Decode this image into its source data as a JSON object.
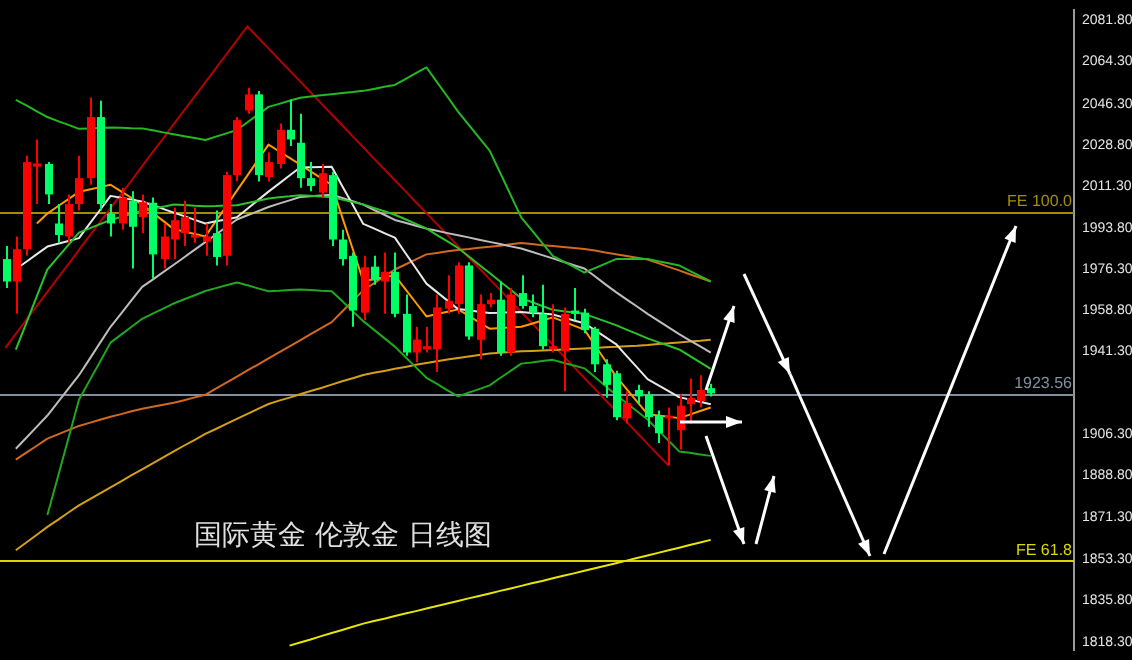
{
  "chart_data": {
    "type": "candlestick",
    "annotations": [
      "国际黄金 伦敦金 日线图"
    ],
    "categories": [
      null,
      null,
      null,
      null,
      null,
      null,
      null,
      null,
      null,
      null,
      null,
      null,
      null,
      null,
      null,
      null,
      null,
      null,
      null,
      null,
      null,
      null,
      null,
      null,
      null,
      null,
      null,
      null,
      null,
      null,
      null,
      null,
      null,
      null,
      null,
      null,
      null,
      null,
      null,
      null,
      null,
      null,
      null,
      null,
      null,
      null,
      null,
      null,
      null,
      null,
      null,
      null,
      null,
      null,
      null,
      null,
      null,
      null,
      null,
      null,
      null,
      null,
      null,
      null,
      null,
      null,
      null,
      null,
      null,
      null,
      null,
      null,
      null,
      null,
      null,
      null,
      null,
      null,
      null,
      null,
      null,
      null,
      null,
      null,
      null,
      null,
      null,
      null,
      null,
      null,
      null,
      null,
      null,
      null,
      null,
      null,
      null,
      null,
      null,
      null,
      null,
      null
    ],
    "ohlc": [
      [
        1980.5,
        1986.0,
        1968.2,
        1971.0
      ],
      [
        1971.0,
        1990.1,
        1957.3,
        1984.7
      ],
      [
        1984.7,
        2024.3,
        1981.9,
        2021.6
      ],
      [
        2019.7,
        2031.2,
        2003.8,
        2021.0
      ],
      [
        2020.8,
        2021.6,
        2003.8,
        2007.9
      ],
      [
        1995.6,
        2003.8,
        1987.4,
        1990.7
      ],
      [
        1990.1,
        2007.9,
        1987.4,
        2003.8
      ],
      [
        2003.8,
        2024.3,
        2001.1,
        2014.8
      ],
      [
        2014.8,
        2049.0,
        2012.0,
        2040.7
      ],
      [
        2040.7,
        2047.6,
        2001.1,
        2003.8
      ],
      [
        1999.7,
        2003.8,
        1990.1,
        1995.6
      ],
      [
        1995.6,
        2010.7,
        1992.9,
        2006.6
      ],
      [
        2005.2,
        2009.3,
        1976.5,
        1994.2
      ],
      [
        1998.3,
        2007.9,
        1991.5,
        2004.6
      ],
      [
        2004.4,
        2006.6,
        1972.3,
        1982.5
      ],
      [
        1980.5,
        1995.6,
        1976.5,
        1990.1
      ],
      [
        1988.8,
        2002.4,
        1980.5,
        1997.0
      ],
      [
        1991.5,
        2005.2,
        1986.0,
        1998.3
      ],
      [
        1989.6,
        2002.4,
        1987.4,
        1990.7
      ],
      [
        1987.9,
        1995.6,
        1981.9,
        1990.1
      ],
      [
        1991.5,
        2001.1,
        1977.8,
        1981.4
      ],
      [
        1981.9,
        2017.5,
        1977.8,
        2016.1
      ],
      [
        2016.1,
        2040.7,
        2013.4,
        2039.4
      ],
      [
        2043.5,
        2053.1,
        2042.1,
        2050.3
      ],
      [
        2050.3,
        2051.7,
        2013.4,
        2016.1
      ],
      [
        2015.3,
        2025.7,
        2013.4,
        2021.6
      ],
      [
        2020.8,
        2038.0,
        2018.9,
        2035.3
      ],
      [
        2035.3,
        2048.1,
        2028.4,
        2031.2
      ],
      [
        2029.8,
        2042.1,
        2010.7,
        2014.8
      ],
      [
        2014.8,
        2021.6,
        2009.3,
        2011.5
      ],
      [
        2008.7,
        2020.8,
        2006.6,
        2016.9
      ],
      [
        2016.1,
        2017.5,
        1986.0,
        1988.8
      ],
      [
        1988.8,
        1992.9,
        1977.8,
        1980.5
      ],
      [
        1981.9,
        1983.3,
        1951.8,
        1958.7
      ],
      [
        1957.8,
        1981.9,
        1954.6,
        1977.0
      ],
      [
        1977.3,
        1981.9,
        1969.6,
        1971.5
      ],
      [
        1971.0,
        1983.3,
        1957.3,
        1975.1
      ],
      [
        1975.1,
        1983.3,
        1955.9,
        1957.3
      ],
      [
        1957.3,
        1965.5,
        1939.5,
        1940.9
      ],
      [
        1940.9,
        1951.8,
        1936.8,
        1946.4
      ],
      [
        1942.2,
        1951.8,
        1940.9,
        1943.6
      ],
      [
        1942.2,
        1965.5,
        1932.7,
        1960.0
      ],
      [
        1959.5,
        1973.7,
        1957.3,
        1962.8
      ],
      [
        1961.4,
        1979.2,
        1957.3,
        1977.8
      ],
      [
        1977.8,
        1979.2,
        1946.3,
        1947.7
      ],
      [
        1946.3,
        1965.5,
        1938.1,
        1961.4
      ],
      [
        1961.4,
        1966.1,
        1960.0,
        1963.3
      ],
      [
        1963.3,
        1971.0,
        1939.5,
        1940.9
      ],
      [
        1940.9,
        1968.2,
        1939.5,
        1965.5
      ],
      [
        1966.1,
        1973.7,
        1959.5,
        1960.6
      ],
      [
        1960.6,
        1965.5,
        1955.9,
        1957.8
      ],
      [
        1957.3,
        1969.6,
        1942.2,
        1943.6
      ],
      [
        1942.2,
        1961.4,
        1940.9,
        1943.6
      ],
      [
        1941.4,
        1960.0,
        1924.5,
        1957.3
      ],
      [
        1958.7,
        1968.2,
        1954.6,
        1957.3
      ],
      [
        1957.8,
        1959.5,
        1949.1,
        1950.4
      ],
      [
        1951.0,
        1951.8,
        1932.7,
        1935.9
      ],
      [
        1935.9,
        1938.1,
        1921.7,
        1927.2
      ],
      [
        1932.1,
        1933.2,
        1912.2,
        1913.5
      ],
      [
        1913.0,
        1924.5,
        1910.8,
        1919.5
      ],
      [
        1925.0,
        1927.2,
        1919.0,
        1922.3
      ],
      [
        1923.1,
        1924.5,
        1909.4,
        1913.5
      ],
      [
        1914.1,
        1916.3,
        1902.6,
        1906.7
      ],
      [
        1913.0,
        1917.6,
        1893.0,
        1914.1
      ],
      [
        1908.0,
        1923.1,
        1899.8,
        1918.4
      ],
      [
        1919.0,
        1929.9,
        1910.8,
        1921.7
      ],
      [
        1920.4,
        1931.3,
        1917.6,
        1925.0
      ],
      [
        1925.8,
        1927.7,
        1922.3,
        1923.6
      ],
      null,
      null,
      null,
      null,
      null,
      null,
      null,
      null,
      null,
      null,
      null,
      null,
      null,
      null,
      null,
      null,
      null,
      null,
      null,
      null,
      null,
      null,
      null,
      null,
      null,
      null,
      null,
      null,
      null,
      null,
      null,
      null,
      null,
      null
    ],
    "colors": [
      "#00ff66",
      "#ff0000",
      "#ff0000",
      "#ff0000",
      "#00ff66",
      "#00ff66",
      "#ff0000",
      "#ff0000",
      "#ff0000",
      "#00ff66",
      "#00ff66",
      "#ff0000",
      "#00ff66",
      "#ff0000",
      "#00ff66",
      "#ff0000",
      "#ff0000",
      "#ff0000",
      "#ff0000",
      "#ff0000",
      "#00ff66",
      "#ff0000",
      "#ff0000",
      "#ff0000",
      "#00ff66",
      "#ff0000",
      "#ff0000",
      "#00ff66",
      "#00ff66",
      "#00ff66",
      "#ff0000",
      "#00ff66",
      "#00ff66",
      "#00ff66",
      "#ff0000",
      "#00ff66",
      "#ff0000",
      "#00ff66",
      "#00ff66",
      "#ff0000",
      "#ff0000",
      "#ff0000",
      "#ff0000",
      "#ff0000",
      "#00ff66",
      "#ff0000",
      "#ff0000",
      "#00ff66",
      "#ff0000",
      "#00ff66",
      "#00ff66",
      "#00ff66",
      "#ff0000",
      "#ff0000",
      "#00ff66",
      "#00ff66",
      "#00ff66",
      "#00ff66",
      "#00ff66",
      "#ff0000",
      "#00ff66",
      "#00ff66",
      "#00ff66",
      "#ff0000",
      "#ff0000",
      "#ff0000",
      "#ff0000",
      "#00ff66",
      null,
      null,
      null,
      null,
      null,
      null,
      null,
      null,
      null,
      null,
      null,
      null,
      null,
      null,
      null,
      null,
      null,
      null,
      null,
      null,
      null,
      null,
      null,
      null,
      null,
      null,
      null,
      null,
      null,
      null,
      null,
      null,
      null,
      null
    ],
    "series": [
      {
        "type": "line",
        "color": "#22b922",
        "values": [
          null,
          2048.0,
          2045.6,
          2043.1,
          2040.7,
          2039.0,
          2037.4,
          2035.7,
          2035.9,
          2036.1,
          2036.3,
          2036.2,
          2036.0,
          2035.9,
          2035.1,
          2034.2,
          2033.4,
          2032.6,
          2031.8,
          2031.0,
          2032.4,
          2033.8,
          2035.2,
          2038.5,
          2041.7,
          2045.0,
          2046.3,
          2047.6,
          2048.9,
          2049.4,
          2049.9,
          2050.4,
          2050.9,
          2051.3,
          2051.8,
          2052.6,
          2053.5,
          2054.3,
          2056.8,
          2059.3,
          2061.8,
          2055.5,
          2049.3,
          2043.0,
          2037.5,
          2032.0,
          2026.5,
          2017.1,
          2007.6,
          1998.2,
          1992.8,
          1987.3,
          1981.9,
          1979.5,
          1977.2,
          1974.8,
          1976.7,
          1978.6,
          1980.5,
          1980.5,
          1980.5,
          1980.5,
          1979.6,
          1978.7,
          1977.8,
          1975.5,
          1973.3,
          1971.0,
          null,
          null,
          null,
          null,
          null,
          null,
          null,
          null,
          null,
          null,
          null,
          null,
          null,
          null,
          null,
          null,
          null,
          null,
          null,
          null,
          null,
          null,
          null,
          null,
          null,
          null,
          null,
          null,
          null,
          null,
          null,
          null,
          null,
          null
        ]
      },
      {
        "type": "line",
        "color": "#1fa81f",
        "values": [
          null,
          null,
          null,
          null,
          1872.0,
          1888.3,
          1904.6,
          1920.9,
          1929.0,
          1937.0,
          1945.1,
          1948.5,
          1951.8,
          1955.2,
          1957.4,
          1959.5,
          1961.7,
          1963.5,
          1965.2,
          1967.0,
          1968.2,
          1969.4,
          1970.6,
          1969.4,
          1968.1,
          1966.9,
          1967.1,
          1967.4,
          1967.6,
          1967.4,
          1967.1,
          1966.9,
          1962.7,
          1958.4,
          1954.2,
          1950.6,
          1947.0,
          1943.4,
          1939.0,
          1934.6,
          1930.2,
          1927.6,
          1924.9,
          1922.3,
          1923.9,
          1925.4,
          1927.0,
          1930.1,
          1933.1,
          1936.2,
          1936.7,
          1937.3,
          1937.8,
          1936.6,
          1935.4,
          1934.2,
          1930.5,
          1926.7,
          1923.0,
          1919.5,
          1916.0,
          1912.5,
          1908.0,
          1903.5,
          1899.0,
          1898.4,
          1897.7,
          1897.1,
          null,
          null,
          null,
          null,
          null,
          null,
          null,
          null,
          null,
          null,
          null,
          null,
          null,
          null,
          null,
          null,
          null,
          null,
          null,
          null,
          null,
          null,
          null,
          null,
          null,
          null,
          null,
          null,
          null,
          null,
          null,
          null,
          null,
          null
        ]
      },
      {
        "type": "line",
        "color": "#2ac42a",
        "values": [
          null,
          1942.1,
          1953.4,
          1964.8,
          1976.1,
          1981.3,
          1986.5,
          1991.7,
          1993.5,
          1995.3,
          1997.1,
          1998.4,
          1999.7,
          2001.0,
          2001.9,
          2002.7,
          2003.6,
          2003.4,
          2003.1,
          2002.9,
          2003.0,
          2003.2,
          2003.3,
          2004.3,
          2005.2,
          2006.2,
          2006.7,
          2007.1,
          2007.6,
          2007.3,
          2007.0,
          2006.7,
          2005.7,
          2004.7,
          2003.7,
          2002.2,
          2000.8,
          1999.3,
          1997.4,
          1995.4,
          1993.5,
          1990.7,
          1988.0,
          1985.2,
          1981.7,
          1978.1,
          1974.6,
          1971.0,
          1967.5,
          1963.9,
          1962.3,
          1960.6,
          1959.0,
          1958.4,
          1957.9,
          1957.3,
          1955.7,
          1954.1,
          1952.5,
          1950.6,
          1948.8,
          1946.9,
          1945.3,
          1943.8,
          1942.2,
          1939.5,
          1936.7,
          1934.0,
          null,
          null,
          null,
          null,
          null,
          null,
          null,
          null,
          null,
          null,
          null,
          null,
          null,
          null,
          null,
          null,
          null,
          null,
          null,
          null,
          null,
          null,
          null,
          null,
          null,
          null,
          null,
          null,
          null,
          null,
          null,
          null,
          null,
          null
        ]
      },
      {
        "type": "line",
        "color": "#e8e8e8",
        "values": [
          null,
          1976.2,
          1979.4,
          1982.6,
          1985.8,
          1987.0,
          1988.2,
          1989.4,
          1995.4,
          2001.3,
          2007.3,
          2006.5,
          2005.7,
          2004.9,
          2003.3,
          2001.8,
          2000.2,
          1998.7,
          1997.1,
          1995.6,
          1996.5,
          1997.3,
          1998.2,
          2001.8,
          2005.5,
          2009.1,
          2012.5,
          2015.9,
          2019.3,
          2019.4,
          2019.5,
          2019.6,
          2011.5,
          2003.5,
          1995.4,
          1993.5,
          1991.5,
          1989.6,
          1983.1,
          1976.6,
          1970.1,
          1966.5,
          1962.9,
          1959.3,
          1958.8,
          1958.2,
          1957.7,
          1957.8,
          1958.0,
          1958.1,
          1957.7,
          1957.4,
          1957.0,
          1955.8,
          1954.5,
          1953.3,
          1950.4,
          1947.4,
          1944.5,
          1939.5,
          1934.6,
          1929.6,
          1927.1,
          1924.5,
          1922.0,
          1921.0,
          1920.0,
          1919.0,
          null,
          null,
          null,
          null,
          null,
          null,
          null,
          null,
          null,
          null,
          null,
          null,
          null,
          null,
          null,
          null,
          null,
          null,
          null,
          null,
          null,
          null,
          null,
          null,
          null,
          null,
          null,
          null,
          null,
          null,
          null,
          null,
          null,
          null
        ]
      },
      {
        "type": "line",
        "color": "#bdbdbd",
        "values": [
          null,
          1900.1,
          1904.8,
          1909.5,
          1914.2,
          1919.9,
          1925.6,
          1931.3,
          1938.1,
          1945.0,
          1951.8,
          1957.4,
          1963.1,
          1968.7,
          1971.8,
          1975.0,
          1978.1,
          1981.3,
          1984.5,
          1987.7,
          1990.9,
          1994.1,
          1997.3,
          1999.1,
          2000.8,
          2002.6,
          2004.0,
          2005.4,
          2006.8,
          2007.1,
          2007.5,
          2007.8,
          2006.4,
          2005.0,
          2003.6,
          2001.4,
          1999.3,
          1997.1,
          1995.9,
          1994.6,
          1993.4,
          1992.5,
          1991.5,
          1990.6,
          1989.7,
          1988.7,
          1987.8,
          1986.9,
          1985.9,
          1985.0,
          1983.6,
          1982.2,
          1980.8,
          1979.4,
          1977.9,
          1976.5,
          1973.2,
          1969.8,
          1966.5,
          1963.4,
          1960.4,
          1957.3,
          1954.4,
          1951.6,
          1948.7,
          1946.1,
          1943.5,
          1940.9,
          null,
          null,
          null,
          null,
          null,
          null,
          null,
          null,
          null,
          null,
          null,
          null,
          null,
          null,
          null,
          null,
          null,
          null,
          null,
          null,
          null,
          null,
          null,
          null,
          null,
          null,
          null,
          null,
          null,
          null,
          null,
          null,
          null,
          null
        ]
      },
      {
        "type": "line",
        "color": "#ff9900",
        "values": [
          null,
          null,
          null,
          1995.6,
          1999.8,
          2002.9,
          2005.9,
          2009.0,
          2010.0,
          2011.0,
          2012.0,
          2009.2,
          2006.4,
          2003.6,
          2000.1,
          1996.7,
          1993.2,
          1992.2,
          1991.1,
          1990.1,
          1996.6,
          2003.0,
          2009.5,
          2016.0,
          2022.5,
          2029.0,
          2026.2,
          2023.4,
          2020.6,
          2017.7,
          2014.8,
          2011.9,
          1998.3,
          1984.8,
          1971.2,
          1972.0,
          1972.8,
          1973.6,
          1967.8,
          1962.0,
          1956.2,
          1957.2,
          1958.2,
          1959.2,
          1956.5,
          1953.7,
          1951.0,
          1951.3,
          1951.5,
          1951.8,
          1953.1,
          1954.5,
          1955.8,
          1954.1,
          1952.3,
          1950.6,
          1944.0,
          1937.4,
          1930.8,
          1925.5,
          1920.1,
          1914.8,
          1914.2,
          1913.7,
          1913.1,
          1914.6,
          1916.1,
          1917.6,
          null,
          null,
          null,
          null,
          null,
          null,
          null,
          null,
          null,
          null,
          null,
          null,
          null,
          null,
          null,
          null,
          null,
          null,
          null,
          null,
          null,
          null,
          null,
          null,
          null,
          null,
          null,
          null,
          null,
          null,
          null,
          null,
          null,
          null
        ]
      },
      {
        "type": "line",
        "color": "#d2691e",
        "values": [
          null,
          1895.5,
          1898.5,
          1901.4,
          1904.4,
          1906.2,
          1908.0,
          1909.8,
          1911.1,
          1912.4,
          1913.7,
          1914.8,
          1916.0,
          1917.1,
          1917.9,
          1918.8,
          1919.6,
          1920.7,
          1921.9,
          1923.0,
          1925.6,
          1928.1,
          1930.7,
          1933.3,
          1935.8,
          1938.4,
          1941.0,
          1943.5,
          1946.1,
          1948.7,
          1951.2,
          1953.8,
          1958.3,
          1962.8,
          1967.3,
          1970.2,
          1973.2,
          1976.1,
          1978.2,
          1980.4,
          1982.5,
          1983.1,
          1983.8,
          1984.4,
          1984.8,
          1985.3,
          1985.7,
          1986.2,
          1986.8,
          1987.3,
          1986.9,
          1986.4,
          1986.0,
          1985.6,
          1985.2,
          1984.8,
          1984.1,
          1983.3,
          1982.6,
          1981.8,
          1981.1,
          1980.3,
          1978.8,
          1977.2,
          1975.7,
          1974.1,
          1972.6,
          1971.0,
          null,
          null,
          null,
          null,
          null,
          null,
          null,
          null,
          null,
          null,
          null,
          null,
          null,
          null,
          null,
          null,
          null,
          null,
          null,
          null,
          null,
          null,
          null,
          null,
          null,
          null,
          null,
          null,
          null,
          null,
          null,
          null,
          null,
          null
        ]
      },
      {
        "type": "line",
        "color": "#d4a017",
        "values": [
          null,
          1857.1,
          1860.4,
          1863.7,
          1867.0,
          1870.0,
          1873.1,
          1876.1,
          1878.7,
          1881.2,
          1883.8,
          1886.3,
          1888.9,
          1891.4,
          1893.9,
          1896.5,
          1899.0,
          1901.5,
          1903.9,
          1906.4,
          1908.5,
          1910.7,
          1912.8,
          1914.9,
          1917.0,
          1919.1,
          1920.5,
          1921.8,
          1923.2,
          1924.6,
          1925.9,
          1927.3,
          1928.7,
          1930.0,
          1931.4,
          1932.3,
          1933.1,
          1934.0,
          1934.8,
          1935.7,
          1936.5,
          1937.2,
          1937.9,
          1938.6,
          1939.2,
          1939.9,
          1940.5,
          1940.8,
          1941.1,
          1941.4,
          1941.6,
          1941.8,
          1942.0,
          1942.2,
          1942.4,
          1942.6,
          1942.8,
          1943.1,
          1943.3,
          1943.6,
          1943.8,
          1944.1,
          1944.5,
          1944.8,
          1945.2,
          1945.6,
          1945.9,
          1946.3,
          null,
          null,
          null,
          null,
          null,
          null,
          null,
          null,
          null,
          null,
          null,
          null,
          null,
          null,
          null,
          null,
          null,
          null,
          null,
          null,
          null,
          null,
          null,
          null,
          null,
          null,
          null,
          null,
          null,
          null,
          null,
          null,
          null,
          null
        ]
      },
      {
        "type": "line",
        "color": "#e6e600",
        "values": [
          null,
          null,
          null,
          null,
          null,
          null,
          null,
          null,
          null,
          null,
          null,
          null,
          null,
          null,
          null,
          null,
          null,
          null,
          null,
          null,
          null,
          null,
          null,
          null,
          null,
          null,
          null,
          1816.7,
          1818.0,
          1819.3,
          1820.7,
          1822.0,
          1823.3,
          1824.7,
          1826.0,
          1827.1,
          1828.1,
          1829.2,
          1830.3,
          1831.3,
          1832.4,
          1833.5,
          1834.5,
          1835.6,
          1836.7,
          1837.7,
          1838.8,
          1839.9,
          1840.9,
          1842.0,
          1843.1,
          1844.1,
          1845.2,
          1846.3,
          1847.3,
          1848.4,
          1849.5,
          1850.5,
          1851.6,
          1852.7,
          1853.8,
          1854.9,
          1856.0,
          1857.1,
          1858.2,
          1859.3,
          1860.4,
          1861.5,
          null,
          null,
          null,
          null,
          null,
          null,
          null,
          null,
          null,
          null,
          null,
          null,
          null,
          null,
          null,
          null,
          null,
          null,
          null,
          null,
          null,
          null,
          null,
          null,
          null,
          null,
          null,
          null,
          null,
          null,
          null,
          null,
          null,
          null
        ]
      },
      {
        "type": "line",
        "color": "#b40000",
        "values": [
          1942.9,
          1948.8,
          1954.8,
          1960.7,
          1966.6,
          1972.5,
          1978.4,
          1984.4,
          1990.3,
          1996.2,
          2002.1,
          2008.0,
          2013.9,
          2019.9,
          2025.8,
          2031.7,
          2037.7,
          2043.6,
          2049.5,
          2055.4,
          2061.3,
          2067.3,
          2073.2,
          2079.1,
          2074.4,
          2069.8,
          2065.1,
          2060.5,
          2055.8,
          2051.2,
          2046.5,
          2041.9,
          2037.2,
          2032.5,
          2027.9,
          2023.2,
          2018.6,
          2013.9,
          2009.3,
          2004.6,
          2000.0,
          1995.3,
          1990.7,
          1986.0,
          1981.3,
          1976.7,
          1972.0,
          1967.4,
          1962.7,
          1958.1,
          1953.4,
          1948.8,
          1944.1,
          1939.5,
          1934.8,
          1930.1,
          1925.5,
          1920.8,
          1916.2,
          1911.5,
          1906.9,
          1902.2,
          1897.6,
          1893.0,
          null,
          null,
          null,
          null,
          null,
          null,
          null,
          null,
          null,
          null,
          null,
          null,
          null,
          null,
          null,
          null,
          null,
          null,
          null,
          null,
          null,
          null,
          null,
          null,
          null,
          null,
          null,
          null,
          null,
          null,
          null,
          null,
          null,
          null,
          null,
          null,
          null,
          null
        ]
      }
    ],
    "ylim": [
      1815.0,
      2085.9
    ],
    "yticks": [
      {
        "value": 2081.8,
        "label": "2081.80"
      },
      {
        "value": 2064.3,
        "label": "2064.30"
      },
      {
        "value": 2046.3,
        "label": "2046.30"
      },
      {
        "value": 2028.8,
        "label": "2028.80"
      },
      {
        "value": 2011.3,
        "label": "2011.30"
      },
      {
        "value": 1993.8,
        "label": "1993.80"
      },
      {
        "value": 1976.3,
        "label": "1976.30"
      },
      {
        "value": 1958.8,
        "label": "1958.80"
      },
      {
        "value": 1941.3,
        "label": "1941.30"
      },
      {
        "value": 1906.3,
        "label": "1906.30"
      },
      {
        "value": 1888.8,
        "label": "1888.80"
      },
      {
        "value": 1871.3,
        "label": "1871.30"
      },
      {
        "value": 1853.3,
        "label": "1853.30"
      },
      {
        "value": 1835.8,
        "label": "1835.80"
      },
      {
        "value": 1818.3,
        "label": "1818.30"
      }
    ],
    "ref_lines": [
      {
        "axis": "y",
        "value": 2000.5,
        "label": "FE 100.0",
        "color": "#a09000"
      },
      {
        "axis": "y",
        "value": 1852.8,
        "label": "FE 61.8",
        "color": "#d8d800"
      },
      {
        "axis": "y",
        "value": 1923.56,
        "label": "1923.56",
        "color": "#8090a0"
      }
    ],
    "grid": false,
    "legend": false,
    "tick_labels": "y",
    "marker": "none",
    "line_style": "solid"
  }
}
